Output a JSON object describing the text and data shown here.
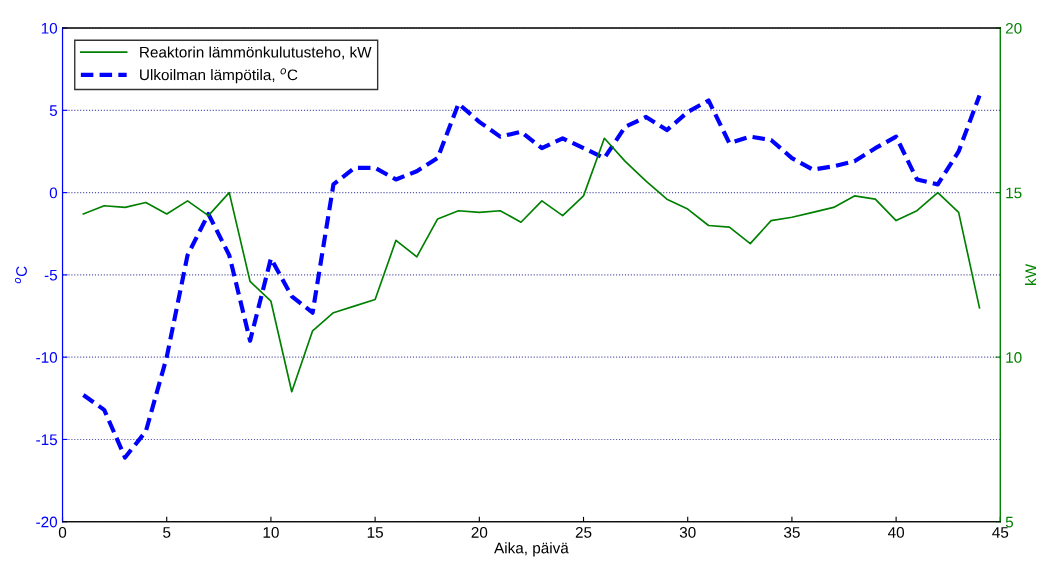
{
  "chart_data": {
    "type": "line",
    "xlabel": "Aika, päivä",
    "ylabel": "$^{o}$C",
    "y2label": "kW",
    "x": [
      1,
      2,
      3,
      4,
      5,
      6,
      7,
      8,
      9,
      10,
      11,
      12,
      13,
      14,
      15,
      16,
      17,
      18,
      19,
      20,
      21,
      22,
      23,
      24,
      25,
      26,
      27,
      28,
      29,
      30,
      31,
      32,
      33,
      34,
      35,
      36,
      37,
      38,
      39,
      40,
      41,
      42,
      43,
      44
    ],
    "series": [
      {
        "name": "Reaktorin lämmönkulutusteho, kW",
        "color": "#008000",
        "axis": "y2",
        "line_style": "solid",
        "values": [
          14.35,
          14.6,
          14.55,
          14.7,
          14.35,
          14.75,
          14.3,
          15,
          12.3,
          11.7,
          8.95,
          10.8,
          11.35,
          11.55,
          11.75,
          13.55,
          13.05,
          14.2,
          14.45,
          14.4,
          14.45,
          14.1,
          14.75,
          14.3,
          14.9,
          16.65,
          15.95,
          15.35,
          14.8,
          14.5,
          14,
          13.95,
          13.45,
          14.15,
          14.25,
          14.4,
          14.55,
          14.9,
          14.8,
          14.15,
          14.45,
          15,
          14.4,
          11.5
        ]
      },
      {
        "name": "Ulkoilman lämpötila, $^{o}$C",
        "color": "#0000ff",
        "line_style": "dashed",
        "values": [
          -12.3,
          -13.2,
          -16.1,
          -14.5,
          -10,
          -3.8,
          -1.3,
          -3.8,
          -9,
          -4,
          -6.3,
          -7.3,
          0.5,
          1.5,
          1.5,
          0.8,
          1.3,
          2.1,
          5.4,
          4.3,
          3.4,
          3.7,
          2.7,
          3.3,
          2.7,
          2.1,
          4,
          4.6,
          3.8,
          4.9,
          5.6,
          3,
          3.4,
          3.2,
          2.1,
          1.4,
          1.6,
          1.9,
          2.7,
          3.4,
          0.8,
          0.5,
          2.5,
          5.9
        ]
      }
    ],
    "xlim": [
      0,
      45
    ],
    "xticks": [
      0,
      5,
      10,
      15,
      20,
      25,
      30,
      35,
      40,
      45
    ],
    "ylim": [
      -20,
      10
    ],
    "yticks": [
      -20,
      -15,
      -10,
      -5,
      0,
      5,
      10
    ],
    "y2lim": [
      5,
      20
    ],
    "y2ticks": [
      5,
      10,
      15,
      20
    ],
    "grid": "y",
    "legend": "top left",
    "marker": "none"
  }
}
